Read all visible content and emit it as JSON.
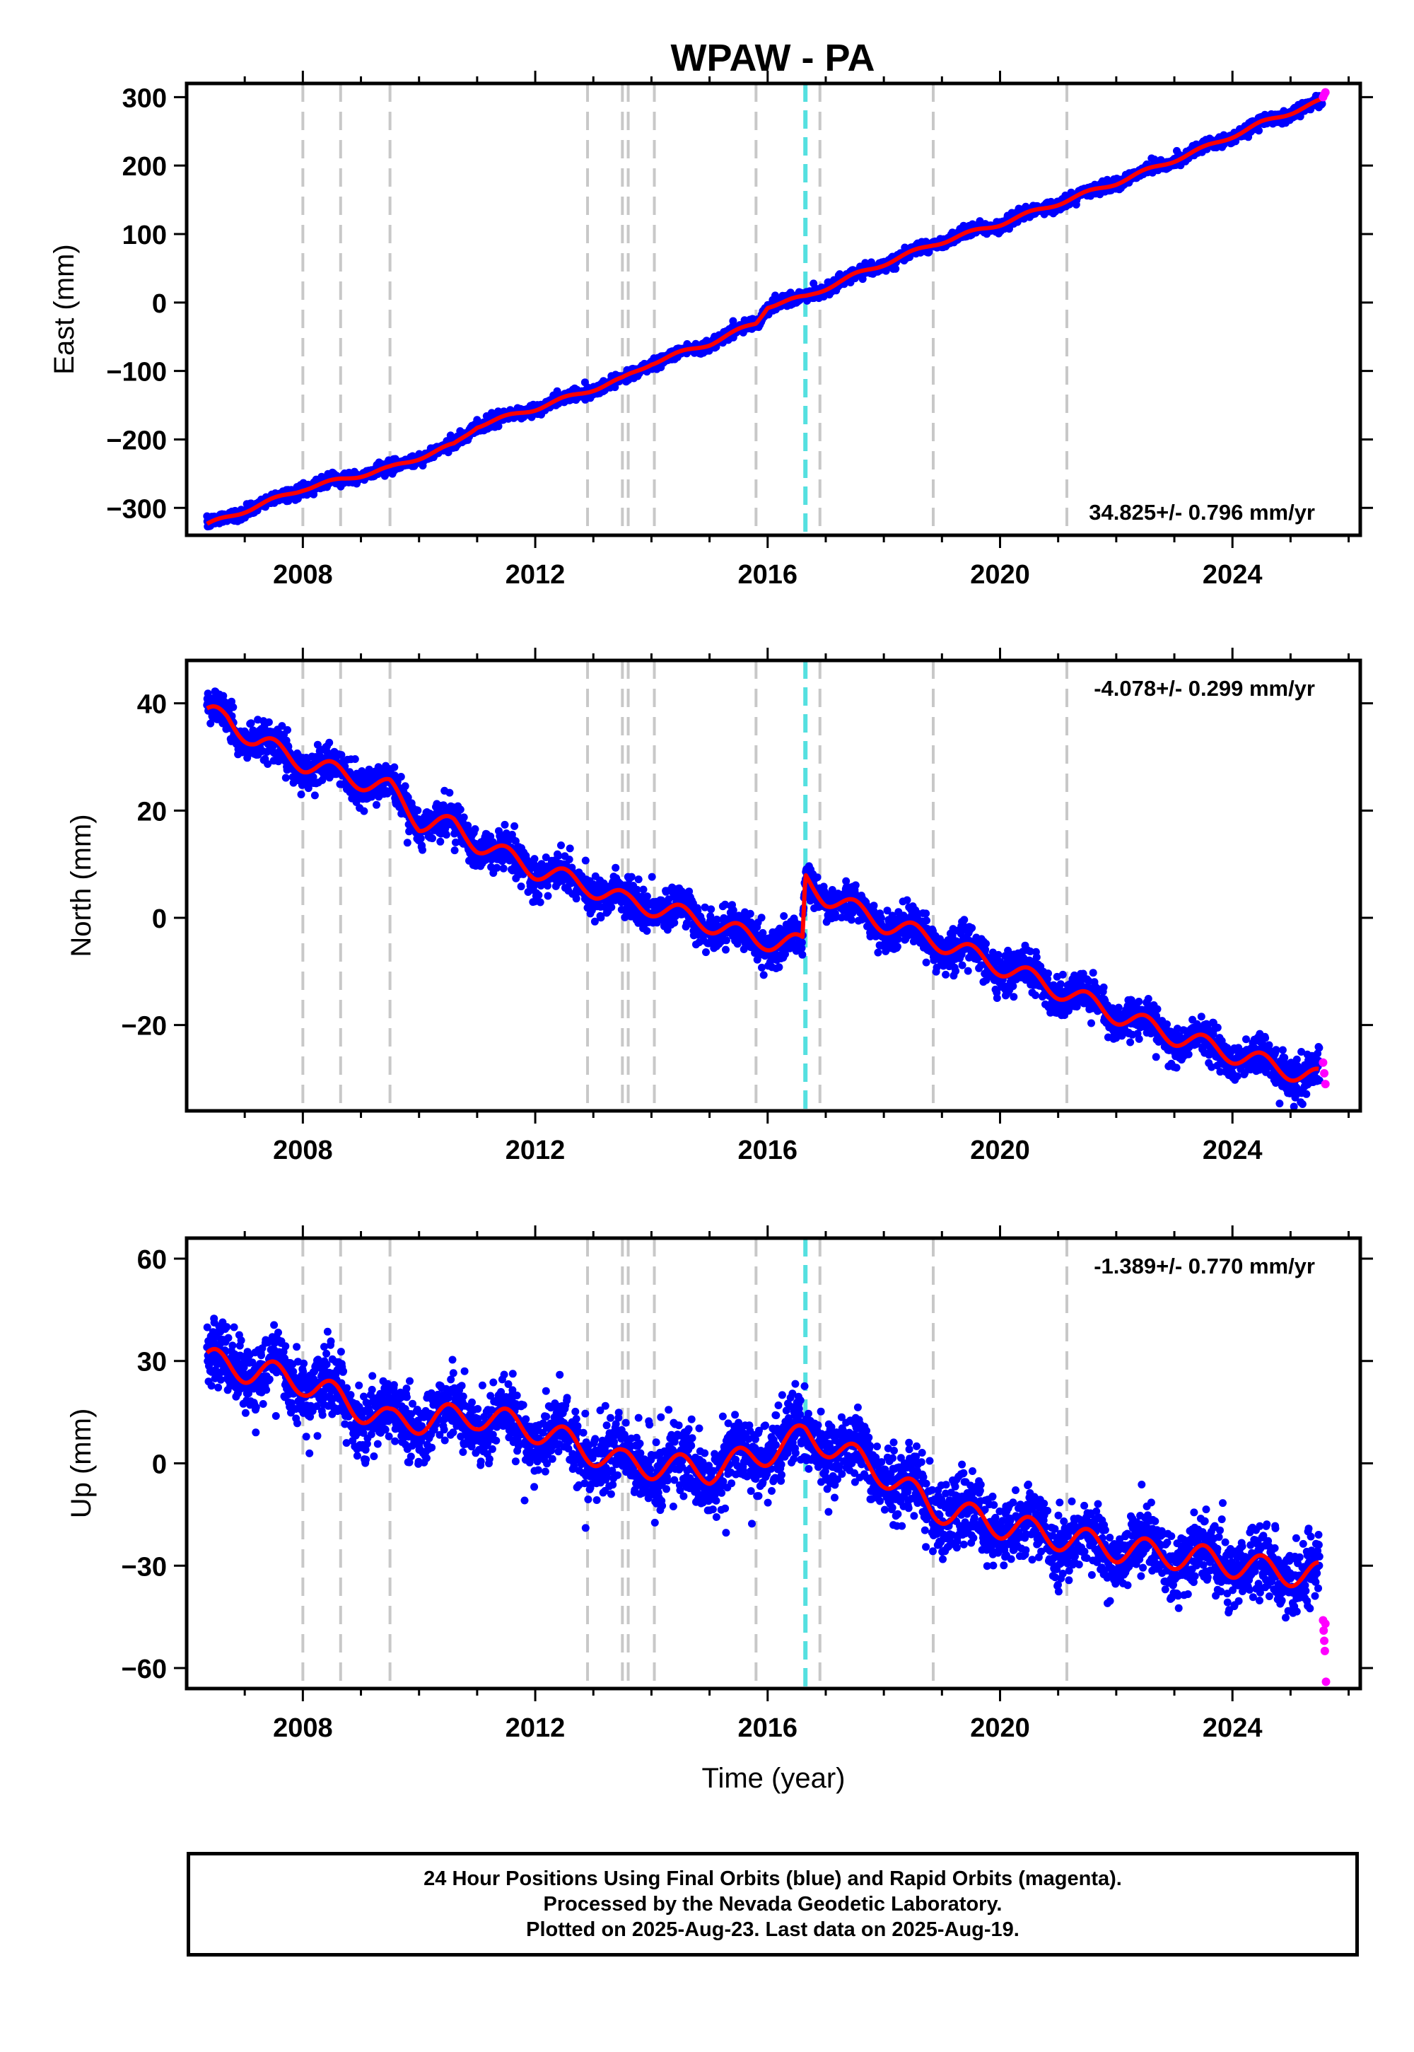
{
  "title": "WPAW - PA",
  "colors": {
    "final_orbits": "#0000ff",
    "rapid_orbits": "#ff00ff",
    "model": "#ff0000",
    "equipment_change": "#c8c8c8",
    "earthquake": "#55e0e0"
  },
  "chart_data": [
    {
      "type": "scatter",
      "component": "east",
      "ylabel": "East (mm)",
      "xlabel": "",
      "xlim": [
        2006.0,
        2026.2
      ],
      "ylim": [
        -340,
        320
      ],
      "yticks": [
        300,
        200,
        100,
        0,
        -100,
        -200,
        -300
      ],
      "ytick_labels": [
        "300",
        "200",
        "100",
        "0",
        "−100",
        "−200",
        "−300"
      ],
      "xticks": [
        2008,
        2012,
        2016,
        2020,
        2024
      ],
      "xtick_labels": [
        "2008",
        "2012",
        "2016",
        "2020",
        "2024"
      ],
      "rate_text": "34.825+/- 0.796 mm/yr",
      "rate_position": "bottom-right",
      "model_knots": [
        [
          2006.35,
          -325
        ],
        [
          2008.0,
          -272
        ],
        [
          2009.5,
          -242
        ],
        [
          2010.6,
          -208
        ],
        [
          2011.0,
          -180
        ],
        [
          2012.0,
          -155
        ],
        [
          2013.5,
          -112
        ],
        [
          2014.0,
          -88
        ],
        [
          2015.0,
          -60
        ],
        [
          2015.8,
          -30
        ],
        [
          2016.0,
          -5
        ],
        [
          2016.65,
          8
        ],
        [
          2017.5,
          40
        ],
        [
          2018.85,
          85
        ],
        [
          2020.0,
          115
        ],
        [
          2021.0,
          145
        ],
        [
          2022.0,
          175
        ],
        [
          2023.5,
          225
        ],
        [
          2024.5,
          262
        ],
        [
          2025.55,
          295
        ]
      ],
      "noise": {
        "sigma": 4,
        "seasonal_amplitude": 3,
        "outlier_amplitude": 10
      },
      "rapid_points": [
        [
          2025.56,
          300
        ],
        [
          2025.58,
          304
        ],
        [
          2025.6,
          307
        ]
      ]
    },
    {
      "type": "scatter",
      "component": "north",
      "ylabel": "North (mm)",
      "xlabel": "",
      "xlim": [
        2006.0,
        2026.2
      ],
      "ylim": [
        -36,
        48
      ],
      "yticks": [
        40,
        20,
        0,
        -20
      ],
      "ytick_labels": [
        "40",
        "20",
        "0",
        "−20"
      ],
      "xticks": [
        2008,
        2012,
        2016,
        2020,
        2024
      ],
      "xtick_labels": [
        "2008",
        "2012",
        "2016",
        "2020",
        "2024"
      ],
      "rate_text": "-4.078+/- 0.299 mm/yr",
      "rate_position": "top-right",
      "model_knots": [
        [
          2006.35,
          38
        ],
        [
          2006.7,
          37
        ],
        [
          2007.2,
          33
        ],
        [
          2008.0,
          29
        ],
        [
          2009.5,
          24
        ],
        [
          2010.0,
          18
        ],
        [
          2010.6,
          17
        ],
        [
          2011.0,
          14
        ],
        [
          2012.0,
          9
        ],
        [
          2012.9,
          6
        ],
        [
          2013.55,
          3
        ],
        [
          2014.05,
          2
        ],
        [
          2015.0,
          -1
        ],
        [
          2015.8,
          -4
        ],
        [
          2016.6,
          -5
        ],
        [
          2016.65,
          7
        ],
        [
          2017.0,
          4
        ],
        [
          2018.0,
          -1
        ],
        [
          2018.85,
          -4
        ],
        [
          2020.0,
          -9
        ],
        [
          2021.15,
          -14
        ],
        [
          2022.0,
          -18
        ],
        [
          2023.0,
          -22
        ],
        [
          2024.5,
          -27
        ],
        [
          2025.5,
          -30
        ]
      ],
      "seasonal_amplitude": 1.8,
      "noise": {
        "sigma": 1.7,
        "outlier_amplitude": 5
      },
      "rapid_points": [
        [
          2025.56,
          -27
        ],
        [
          2025.58,
          -29
        ],
        [
          2025.6,
          -31
        ]
      ]
    },
    {
      "type": "scatter",
      "component": "up",
      "ylabel": "Up (mm)",
      "xlabel": "Time (year)",
      "xlim": [
        2006.0,
        2026.2
      ],
      "ylim": [
        -66,
        66
      ],
      "yticks": [
        60,
        30,
        0,
        -30,
        -60
      ],
      "ytick_labels": [
        "60",
        "30",
        "0",
        "−30",
        "−60"
      ],
      "xticks": [
        2008,
        2012,
        2016,
        2020,
        2024
      ],
      "xtick_labels": [
        "2008",
        "2012",
        "2016",
        "2020",
        "2024"
      ],
      "rate_text": "-1.389+/- 0.770 mm/yr",
      "rate_position": "top-right",
      "model_knots": [
        [
          2006.35,
          30
        ],
        [
          2008.0,
          24
        ],
        [
          2009.5,
          12
        ],
        [
          2011.0,
          14
        ],
        [
          2012.0,
          10
        ],
        [
          2013.5,
          0
        ],
        [
          2015.0,
          -2
        ],
        [
          2015.8,
          2
        ],
        [
          2016.65,
          8
        ],
        [
          2017.0,
          6
        ],
        [
          2018.0,
          -3
        ],
        [
          2018.85,
          -13
        ],
        [
          2020.0,
          -18
        ],
        [
          2021.15,
          -22
        ],
        [
          2022.0,
          -25
        ],
        [
          2023.5,
          -28
        ],
        [
          2024.5,
          -31
        ],
        [
          2025.5,
          -33
        ]
      ],
      "seasonal_amplitude": 4,
      "noise": {
        "sigma": 5,
        "outlier_amplitude": 14
      },
      "rapid_points": [
        [
          2025.56,
          -46
        ],
        [
          2025.57,
          -49
        ],
        [
          2025.58,
          -52
        ],
        [
          2025.59,
          -55
        ],
        [
          2025.6,
          -47
        ],
        [
          2025.61,
          -64
        ]
      ]
    }
  ],
  "event_lines": {
    "equipment_changes": [
      2008.0,
      2008.65,
      2009.5,
      2012.9,
      2013.5,
      2013.6,
      2014.05,
      2015.8,
      2016.9,
      2018.85,
      2021.15
    ],
    "earthquake": [
      2016.65
    ]
  },
  "footer": {
    "line1": "24 Hour Positions Using Final Orbits (blue) and Rapid Orbits (magenta).",
    "line2": "Processed by the Nevada Geodetic Laboratory.",
    "line3": "Plotted on 2025-Aug-23. Last data on 2025-Aug-19."
  }
}
